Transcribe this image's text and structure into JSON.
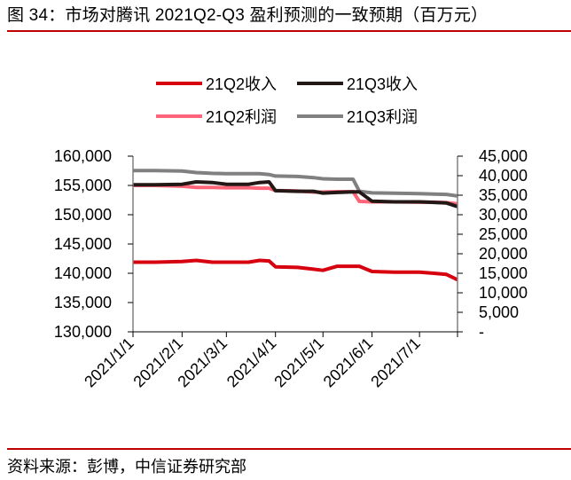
{
  "header": {
    "title": "图 34：市场对腾讯 2021Q2-Q3 盈利预测的一致预期（百万元）",
    "accent_color": "#c00000"
  },
  "footer": {
    "source": "资料来源：彭博，中信证券研究部"
  },
  "chart_data": {
    "type": "line",
    "title": "市场对腾讯 2021Q2-Q3 盈利预测的一致预期（百万元）",
    "xlabel": "",
    "ylabel": "",
    "y2label": "",
    "grid": false,
    "legend_position": "top",
    "x_ticks": [
      "2021/1/1",
      "2021/2/1",
      "2021/3/1",
      "2021/4/1",
      "2021/5/1",
      "2021/6/1",
      "2021/7/1"
    ],
    "y_left": {
      "ticks": [
        "130,000",
        "135,000",
        "140,000",
        "145,000",
        "150,000",
        "155,000",
        "160,000"
      ],
      "range": [
        130000,
        160000
      ]
    },
    "y_right": {
      "ticks": [
        "-",
        "5,000",
        "10,000",
        "15,000",
        "20,000",
        "25,000",
        "30,000",
        "35,000",
        "40,000",
        "45,000"
      ],
      "range": [
        0,
        45000
      ]
    },
    "x": [
      "2021/1/1",
      "2021/1/15",
      "2021/2/1",
      "2021/2/10",
      "2021/2/20",
      "2021/3/1",
      "2021/3/15",
      "2021/3/22",
      "2021/3/28",
      "2021/4/1",
      "2021/4/15",
      "2021/4/25",
      "2021/5/1",
      "2021/5/10",
      "2021/5/20",
      "2021/5/24",
      "2021/6/1",
      "2021/6/15",
      "2021/7/1",
      "2021/7/10",
      "2021/7/18",
      "2021/7/25"
    ],
    "series": [
      {
        "name": "21Q2收入",
        "axis": "left",
        "color": "#d7000f",
        "values": [
          141900,
          141900,
          142000,
          142200,
          141900,
          141900,
          141900,
          142200,
          142100,
          141100,
          141000,
          140700,
          140500,
          141200,
          141200,
          141200,
          140300,
          140200,
          140200,
          140000,
          139800,
          138900
        ]
      },
      {
        "name": "21Q3收入",
        "axis": "left",
        "color": "#231815",
        "values": [
          155100,
          155100,
          155200,
          155600,
          155500,
          155200,
          155200,
          155500,
          155600,
          154100,
          154000,
          154000,
          153700,
          153800,
          153900,
          153900,
          152300,
          152200,
          152200,
          152100,
          152000,
          151400
        ]
      },
      {
        "name": "21Q2利润",
        "axis": "right",
        "color": "#ff6478",
        "values": [
          37500,
          37500,
          37300,
          37000,
          37000,
          36900,
          36900,
          36800,
          36800,
          36200,
          36100,
          35800,
          35800,
          35900,
          35900,
          33400,
          33300,
          33300,
          33200,
          33200,
          33100,
          32800
        ]
      },
      {
        "name": "21Q3利润",
        "axis": "right",
        "color": "#808080",
        "values": [
          41300,
          41300,
          41200,
          40800,
          40600,
          40500,
          40500,
          40500,
          40300,
          39900,
          39800,
          39500,
          39200,
          39100,
          39100,
          36000,
          35600,
          35500,
          35400,
          35300,
          35200,
          34800
        ]
      }
    ]
  }
}
